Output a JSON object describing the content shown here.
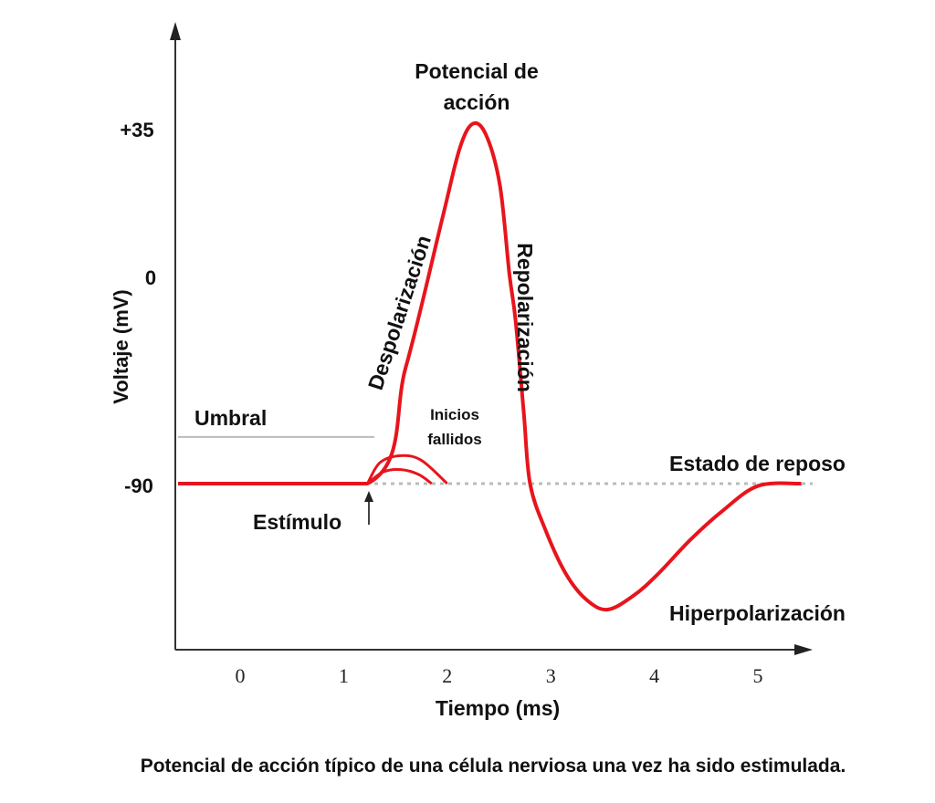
{
  "chart_data": {
    "type": "line",
    "title": "Potencial de acción típico de una célula nerviosa una vez ha sido estimulada.",
    "xlabel": "Tiempo (ms)",
    "ylabel": "Voltaje (mV)",
    "x_ticks": [
      "0",
      "1",
      "2",
      "3",
      "4",
      "5"
    ],
    "y_ticks": [
      "+35",
      "0",
      "-90"
    ],
    "y_tick_values": [
      35,
      0,
      -90
    ],
    "xlim": [
      -0.6,
      5.5
    ],
    "color": "#e8141c",
    "series": [
      {
        "name": "Potencial de acción",
        "points": [
          [
            -0.6,
            -90
          ],
          [
            1.23,
            -90
          ],
          [
            1.6,
            -40
          ],
          [
            1.95,
            13
          ],
          [
            2.12,
            30
          ],
          [
            2.25,
            36
          ],
          [
            2.38,
            33
          ],
          [
            2.51,
            21
          ],
          [
            2.6,
            0
          ],
          [
            2.66,
            -20
          ],
          [
            2.74,
            -60
          ],
          [
            2.8,
            -90
          ],
          [
            2.95,
            -110
          ],
          [
            3.15,
            -129
          ],
          [
            3.35,
            -140
          ],
          [
            3.55,
            -144
          ],
          [
            3.8,
            -138
          ],
          [
            4.03,
            -129
          ],
          [
            4.35,
            -114
          ],
          [
            4.65,
            -102
          ],
          [
            5.0,
            -91
          ],
          [
            5.42,
            -90
          ]
        ]
      },
      {
        "name": "Inicio fallido 1",
        "points": [
          [
            1.23,
            -90
          ],
          [
            1.35,
            -81
          ],
          [
            1.55,
            -78
          ],
          [
            1.75,
            -80
          ],
          [
            2.0,
            -90
          ]
        ]
      },
      {
        "name": "Inicio fallido 2",
        "points": [
          [
            1.23,
            -90
          ],
          [
            1.38,
            -85
          ],
          [
            1.55,
            -84
          ],
          [
            1.72,
            -86
          ],
          [
            1.85,
            -90
          ]
        ]
      }
    ],
    "threshold": {
      "label": "Umbral",
      "value": -70
    },
    "resting_line": {
      "value": -90
    },
    "annotations": {
      "peak": "Potencial de\nacción",
      "peak_line1": "Potencial de",
      "peak_line2": "acción",
      "depolarization": "Despolarización",
      "repolarization": "Repolarización",
      "failed_line1": "Inicios",
      "failed_line2": "fallidos",
      "resting": "Estado de reposo",
      "stimulus": "Estímulo",
      "hyperpolarization": "Hiperpolarización"
    }
  }
}
